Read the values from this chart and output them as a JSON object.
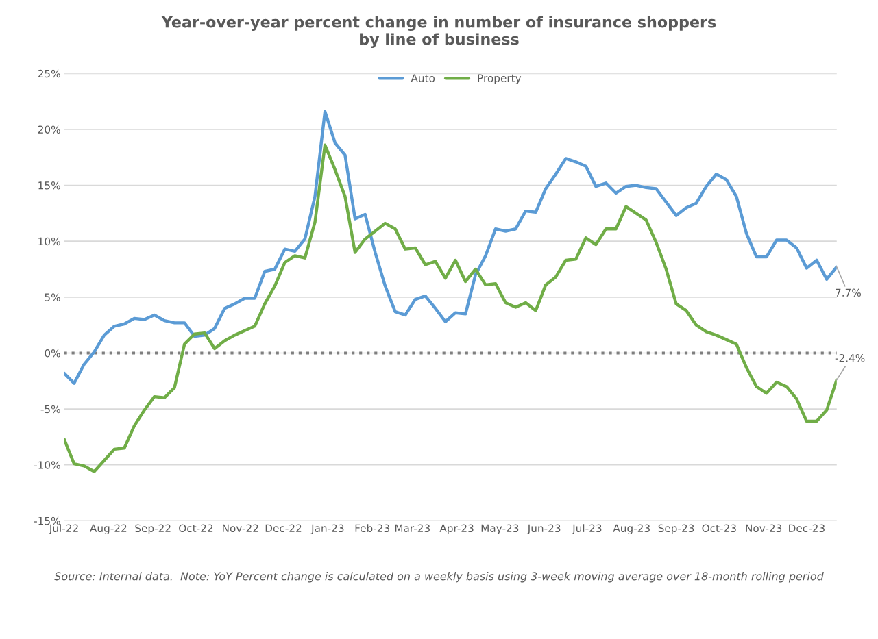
{
  "chart_data": {
    "type": "line",
    "title": "Year-over-year percent change in number of insurance shoppers\nby line of business",
    "x": [
      "2022-07-01",
      "2022-07-08",
      "2022-07-15",
      "2022-07-22",
      "2022-07-29",
      "2022-08-05",
      "2022-08-12",
      "2022-08-19",
      "2022-08-26",
      "2022-09-02",
      "2022-09-09",
      "2022-09-16",
      "2022-09-23",
      "2022-09-30",
      "2022-10-07",
      "2022-10-14",
      "2022-10-21",
      "2022-10-28",
      "2022-11-04",
      "2022-11-11",
      "2022-11-18",
      "2022-11-25",
      "2022-12-02",
      "2022-12-09",
      "2022-12-16",
      "2022-12-23",
      "2022-12-30",
      "2023-01-06",
      "2023-01-13",
      "2023-01-20",
      "2023-01-27",
      "2023-02-03",
      "2023-02-10",
      "2023-02-17",
      "2023-02-24",
      "2023-03-03",
      "2023-03-10",
      "2023-03-17",
      "2023-03-24",
      "2023-03-31",
      "2023-04-07",
      "2023-04-14",
      "2023-04-21",
      "2023-04-28",
      "2023-05-05",
      "2023-05-12",
      "2023-05-19",
      "2023-05-26",
      "2023-06-02",
      "2023-06-09",
      "2023-06-16",
      "2023-06-23",
      "2023-06-30",
      "2023-07-07",
      "2023-07-14",
      "2023-07-21",
      "2023-07-28",
      "2023-08-04",
      "2023-08-11",
      "2023-08-18",
      "2023-08-25",
      "2023-09-01",
      "2023-09-08",
      "2023-09-15",
      "2023-09-22",
      "2023-09-29",
      "2023-10-06",
      "2023-10-13",
      "2023-10-20",
      "2023-10-27",
      "2023-11-03",
      "2023-11-10",
      "2023-11-17",
      "2023-11-24",
      "2023-12-01",
      "2023-12-08",
      "2023-12-15",
      "2023-12-22"
    ],
    "series": [
      {
        "name": "Auto",
        "color": "#5b9bd5",
        "values": [
          -1.8,
          -2.7,
          -1.0,
          0.1,
          1.6,
          2.4,
          2.6,
          3.1,
          3.0,
          3.4,
          2.9,
          2.7,
          2.7,
          1.5,
          1.6,
          2.2,
          4.0,
          4.4,
          4.9,
          4.9,
          7.3,
          7.5,
          9.3,
          9.1,
          10.2,
          14.0,
          21.6,
          18.8,
          17.7,
          12.0,
          12.4,
          9.0,
          6.0,
          3.7,
          3.4,
          4.8,
          5.1,
          4.0,
          2.8,
          3.6,
          3.5,
          7.0,
          8.7,
          11.1,
          10.9,
          11.1,
          12.7,
          12.6,
          14.7,
          16.0,
          17.4,
          17.1,
          16.7,
          14.9,
          15.2,
          14.3,
          14.9,
          15.0,
          14.8,
          14.7,
          13.5,
          12.3,
          13.0,
          13.4,
          14.9,
          16.0,
          15.5,
          14.0,
          10.7,
          8.6,
          8.6,
          10.1,
          10.1,
          9.4,
          7.6,
          8.3,
          6.6,
          7.7
        ]
      },
      {
        "name": "Property",
        "color": "#70ad47",
        "values": [
          -7.7,
          -9.9,
          -10.1,
          -10.6,
          -9.6,
          -8.6,
          -8.5,
          -6.5,
          -5.1,
          -3.9,
          -4.0,
          -3.1,
          0.8,
          1.7,
          1.8,
          0.4,
          1.1,
          1.6,
          2.0,
          2.4,
          4.4,
          6.0,
          8.1,
          8.7,
          8.5,
          11.7,
          18.6,
          16.4,
          14.0,
          9.0,
          10.2,
          10.9,
          11.6,
          11.1,
          9.3,
          9.4,
          7.9,
          8.2,
          6.7,
          8.3,
          6.4,
          7.5,
          6.1,
          6.2,
          4.5,
          4.1,
          4.5,
          3.8,
          6.1,
          6.8,
          8.3,
          8.4,
          10.3,
          9.7,
          11.1,
          11.1,
          13.1,
          12.5,
          11.9,
          9.9,
          7.5,
          4.4,
          3.8,
          2.5,
          1.9,
          1.6,
          1.2,
          0.8,
          -1.3,
          -3.0,
          -3.6,
          -2.6,
          -3.0,
          -4.1,
          -6.1,
          -6.1,
          -5.1,
          -2.4
        ]
      }
    ],
    "xlim": [
      "2022-07-01",
      "2023-12-22"
    ],
    "xticks": [
      {
        "value": "2022-07-01",
        "label": "Jul-22"
      },
      {
        "value": "2022-08-01",
        "label": "Aug-22"
      },
      {
        "value": "2022-09-01",
        "label": "Sep-22"
      },
      {
        "value": "2022-10-01",
        "label": "Oct-22"
      },
      {
        "value": "2022-11-01",
        "label": "Nov-22"
      },
      {
        "value": "2022-12-01",
        "label": "Dec-22"
      },
      {
        "value": "2023-01-01",
        "label": "Jan-23"
      },
      {
        "value": "2023-02-01",
        "label": "Feb-23"
      },
      {
        "value": "2023-03-01",
        "label": "Mar-23"
      },
      {
        "value": "2023-04-01",
        "label": "Apr-23"
      },
      {
        "value": "2023-05-01",
        "label": "May-23"
      },
      {
        "value": "2023-06-01",
        "label": "Jun-23"
      },
      {
        "value": "2023-07-01",
        "label": "Jul-23"
      },
      {
        "value": "2023-08-01",
        "label": "Aug-23"
      },
      {
        "value": "2023-09-01",
        "label": "Sep-23"
      },
      {
        "value": "2023-10-01",
        "label": "Oct-23"
      },
      {
        "value": "2023-11-01",
        "label": "Nov-23"
      },
      {
        "value": "2023-12-01",
        "label": "Dec-23"
      }
    ],
    "ylim": [
      -15,
      25
    ],
    "yticks": [
      {
        "value": -15,
        "label": "-15%"
      },
      {
        "value": -10,
        "label": "-10%"
      },
      {
        "value": -5,
        "label": "-5%"
      },
      {
        "value": 0,
        "label": "0%"
      },
      {
        "value": 5,
        "label": "5%"
      },
      {
        "value": 10,
        "label": "10%"
      },
      {
        "value": 15,
        "label": "15%"
      },
      {
        "value": 20,
        "label": "20%"
      },
      {
        "value": 25,
        "label": "25%"
      }
    ],
    "ref_lines": [
      {
        "axis": "y",
        "value": 0,
        "color": "#7f7f7f",
        "line_style": "dotted"
      }
    ],
    "grid": "y",
    "legend": "top",
    "marker": "none",
    "line_style": "solid",
    "annotations": [
      {
        "text": "7.7%",
        "x": "2023-12-22",
        "y": 7.7
      },
      {
        "text": "-2.4%",
        "x": "2023-12-22",
        "y": -2.4
      },
      "Source: Internal data.  Note: YoY Percent change is calculated on a weekly basis using 3-week moving average over 18-month rolling period"
    ]
  }
}
